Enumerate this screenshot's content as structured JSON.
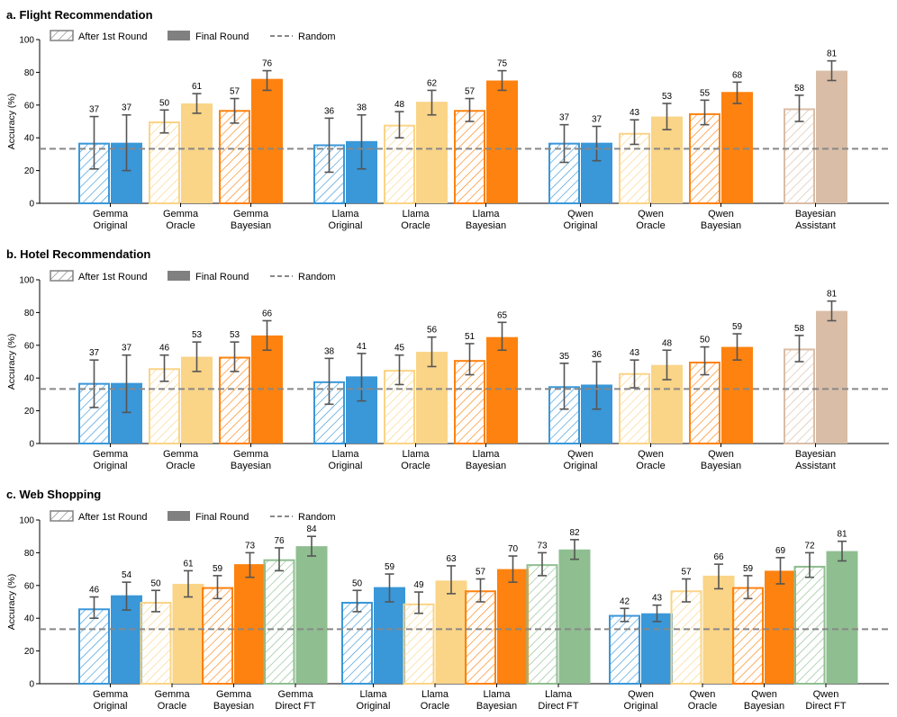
{
  "colors": {
    "blue": "#3a97d8",
    "light_orange": "#fad487",
    "orange": "#fd820f",
    "beige": "#d9bda6",
    "green": "#8fbe90",
    "random_line": "#888888",
    "legend_gray": "#808080",
    "error_bar": "#555555"
  },
  "legend": {
    "after_first": "After 1st Round",
    "final": "Final Round",
    "random": "Random"
  },
  "chart_data": [
    {
      "type": "bar",
      "title": "a. Flight Recommendation",
      "ylabel": "Accuracy (%)",
      "ylim": [
        0,
        100
      ],
      "yticks": [
        0,
        20,
        40,
        60,
        80,
        100
      ],
      "random_baseline": 33.3,
      "groups": [
        {
          "name": "Gemma",
          "categories": [
            {
              "label": [
                "Gemma",
                "Original"
              ],
              "color": "blue",
              "after": {
                "value": 37,
                "err": [
                  21,
                  53
                ]
              },
              "final": {
                "value": 37,
                "err": [
                  20,
                  54
                ]
              }
            },
            {
              "label": [
                "Gemma",
                "Oracle"
              ],
              "color": "light_orange",
              "after": {
                "value": 50,
                "err": [
                  43,
                  57
                ]
              },
              "final": {
                "value": 61,
                "err": [
                  55,
                  67
                ]
              }
            },
            {
              "label": [
                "Gemma",
                "Bayesian"
              ],
              "color": "orange",
              "after": {
                "value": 57,
                "err": [
                  49,
                  64
                ]
              },
              "final": {
                "value": 76,
                "err": [
                  69,
                  81
                ]
              }
            }
          ]
        },
        {
          "name": "Llama",
          "categories": [
            {
              "label": [
                "Llama",
                "Original"
              ],
              "color": "blue",
              "after": {
                "value": 36,
                "err": [
                  19,
                  52
                ]
              },
              "final": {
                "value": 38,
                "err": [
                  21,
                  54
                ]
              }
            },
            {
              "label": [
                "Llama",
                "Oracle"
              ],
              "color": "light_orange",
              "after": {
                "value": 48,
                "err": [
                  40,
                  56
                ]
              },
              "final": {
                "value": 62,
                "err": [
                  54,
                  69
                ]
              }
            },
            {
              "label": [
                "Llama",
                "Bayesian"
              ],
              "color": "orange",
              "after": {
                "value": 57,
                "err": [
                  50,
                  64
                ]
              },
              "final": {
                "value": 75,
                "err": [
                  69,
                  81
                ]
              }
            }
          ]
        },
        {
          "name": "Qwen",
          "categories": [
            {
              "label": [
                "Qwen",
                "Original"
              ],
              "color": "blue",
              "after": {
                "value": 37,
                "err": [
                  25,
                  48
                ]
              },
              "final": {
                "value": 37,
                "err": [
                  26,
                  47
                ]
              }
            },
            {
              "label": [
                "Qwen",
                "Oracle"
              ],
              "color": "light_orange",
              "after": {
                "value": 43,
                "err": [
                  36,
                  51
                ]
              },
              "final": {
                "value": 53,
                "err": [
                  45,
                  61
                ]
              }
            },
            {
              "label": [
                "Qwen",
                "Bayesian"
              ],
              "color": "orange",
              "after": {
                "value": 55,
                "err": [
                  48,
                  63
                ]
              },
              "final": {
                "value": 68,
                "err": [
                  61,
                  74
                ]
              }
            }
          ]
        },
        {
          "name": "Bayesian Assistant",
          "categories": [
            {
              "label": [
                "Bayesian",
                "Assistant"
              ],
              "color": "beige",
              "after": {
                "value": 58,
                "err": [
                  50,
                  66
                ]
              },
              "final": {
                "value": 81,
                "err": [
                  75,
                  87
                ]
              }
            }
          ]
        }
      ]
    },
    {
      "type": "bar",
      "title": "b. Hotel Recommendation",
      "ylabel": "Accuracy (%)",
      "ylim": [
        0,
        100
      ],
      "yticks": [
        0,
        20,
        40,
        60,
        80,
        100
      ],
      "random_baseline": 33.3,
      "groups": [
        {
          "name": "Gemma",
          "categories": [
            {
              "label": [
                "Gemma",
                "Original"
              ],
              "color": "blue",
              "after": {
                "value": 37,
                "err": [
                  22,
                  51
                ]
              },
              "final": {
                "value": 37,
                "err": [
                  19,
                  54
                ]
              }
            },
            {
              "label": [
                "Gemma",
                "Oracle"
              ],
              "color": "light_orange",
              "after": {
                "value": 46,
                "err": [
                  38,
                  54
                ]
              },
              "final": {
                "value": 53,
                "err": [
                  44,
                  62
                ]
              }
            },
            {
              "label": [
                "Gemma",
                "Bayesian"
              ],
              "color": "orange",
              "after": {
                "value": 53,
                "err": [
                  44,
                  62
                ]
              },
              "final": {
                "value": 66,
                "err": [
                  57,
                  75
                ]
              }
            }
          ]
        },
        {
          "name": "Llama",
          "categories": [
            {
              "label": [
                "Llama",
                "Original"
              ],
              "color": "blue",
              "after": {
                "value": 38,
                "err": [
                  24,
                  52
                ]
              },
              "final": {
                "value": 41,
                "err": [
                  26,
                  55
                ]
              }
            },
            {
              "label": [
                "Llama",
                "Oracle"
              ],
              "color": "light_orange",
              "after": {
                "value": 45,
                "err": [
                  36,
                  54
                ]
              },
              "final": {
                "value": 56,
                "err": [
                  47,
                  65
                ]
              }
            },
            {
              "label": [
                "Llama",
                "Bayesian"
              ],
              "color": "orange",
              "after": {
                "value": 51,
                "err": [
                  42,
                  61
                ]
              },
              "final": {
                "value": 65,
                "err": [
                  57,
                  74
                ]
              }
            }
          ]
        },
        {
          "name": "Qwen",
          "categories": [
            {
              "label": [
                "Qwen",
                "Original"
              ],
              "color": "blue",
              "after": {
                "value": 35,
                "err": [
                  21,
                  49
                ]
              },
              "final": {
                "value": 36,
                "err": [
                  21,
                  50
                ]
              }
            },
            {
              "label": [
                "Qwen",
                "Oracle"
              ],
              "color": "light_orange",
              "after": {
                "value": 43,
                "err": [
                  34,
                  51
                ]
              },
              "final": {
                "value": 48,
                "err": [
                  39,
                  57
                ]
              }
            },
            {
              "label": [
                "Qwen",
                "Bayesian"
              ],
              "color": "orange",
              "after": {
                "value": 50,
                "err": [
                  42,
                  59
                ]
              },
              "final": {
                "value": 59,
                "err": [
                  51,
                  67
                ]
              }
            }
          ]
        },
        {
          "name": "Bayesian Assistant",
          "categories": [
            {
              "label": [
                "Bayesian",
                "Assistant"
              ],
              "color": "beige",
              "after": {
                "value": 58,
                "err": [
                  50,
                  66
                ]
              },
              "final": {
                "value": 81,
                "err": [
                  75,
                  87
                ]
              }
            }
          ]
        }
      ]
    },
    {
      "type": "bar",
      "title": "c. Web Shopping",
      "ylabel": "Accuracy (%)",
      "ylim": [
        0,
        100
      ],
      "yticks": [
        0,
        20,
        40,
        60,
        80,
        100
      ],
      "random_baseline": 33.3,
      "groups": [
        {
          "name": "Gemma",
          "categories": [
            {
              "label": [
                "Gemma",
                "Original"
              ],
              "color": "blue",
              "after": {
                "value": 46,
                "err": [
                  40,
                  53
                ]
              },
              "final": {
                "value": 54,
                "err": [
                  45,
                  62
                ]
              }
            },
            {
              "label": [
                "Gemma",
                "Oracle"
              ],
              "color": "light_orange",
              "after": {
                "value": 50,
                "err": [
                  44,
                  57
                ]
              },
              "final": {
                "value": 61,
                "err": [
                  53,
                  69
                ]
              }
            },
            {
              "label": [
                "Gemma",
                "Bayesian"
              ],
              "color": "orange",
              "after": {
                "value": 59,
                "err": [
                  52,
                  66
                ]
              },
              "final": {
                "value": 73,
                "err": [
                  65,
                  80
                ]
              }
            },
            {
              "label": [
                "Gemma",
                "Direct FT"
              ],
              "color": "green",
              "after": {
                "value": 76,
                "err": [
                  69,
                  83
                ]
              },
              "final": {
                "value": 84,
                "err": [
                  78,
                  90
                ]
              }
            }
          ]
        },
        {
          "name": "Llama",
          "categories": [
            {
              "label": [
                "Llama",
                "Original"
              ],
              "color": "blue",
              "after": {
                "value": 50,
                "err": [
                  44,
                  57
                ]
              },
              "final": {
                "value": 59,
                "err": [
                  50,
                  67
                ]
              }
            },
            {
              "label": [
                "Llama",
                "Oracle"
              ],
              "color": "light_orange",
              "after": {
                "value": 49,
                "err": [
                  43,
                  56
                ]
              },
              "final": {
                "value": 63,
                "err": [
                  55,
                  72
                ]
              }
            },
            {
              "label": [
                "Llama",
                "Bayesian"
              ],
              "color": "orange",
              "after": {
                "value": 57,
                "err": [
                  50,
                  64
                ]
              },
              "final": {
                "value": 70,
                "err": [
                  62,
                  78
                ]
              }
            },
            {
              "label": [
                "Llama",
                "Direct FT"
              ],
              "color": "green",
              "after": {
                "value": 73,
                "err": [
                  66,
                  80
                ]
              },
              "final": {
                "value": 82,
                "err": [
                  76,
                  88
                ]
              }
            }
          ]
        },
        {
          "name": "Qwen",
          "categories": [
            {
              "label": [
                "Qwen",
                "Original"
              ],
              "color": "blue",
              "after": {
                "value": 42,
                "err": [
                  38,
                  46
                ]
              },
              "final": {
                "value": 43,
                "err": [
                  38,
                  48
                ]
              }
            },
            {
              "label": [
                "Qwen",
                "Oracle"
              ],
              "color": "light_orange",
              "after": {
                "value": 57,
                "err": [
                  50,
                  64
                ]
              },
              "final": {
                "value": 66,
                "err": [
                  58,
                  73
                ]
              }
            },
            {
              "label": [
                "Qwen",
                "Bayesian"
              ],
              "color": "orange",
              "after": {
                "value": 59,
                "err": [
                  52,
                  66
                ]
              },
              "final": {
                "value": 69,
                "err": [
                  61,
                  77
                ]
              }
            },
            {
              "label": [
                "Qwen",
                "Direct FT"
              ],
              "color": "green",
              "after": {
                "value": 72,
                "err": [
                  65,
                  80
                ]
              },
              "final": {
                "value": 81,
                "err": [
                  75,
                  87
                ]
              }
            }
          ]
        }
      ]
    }
  ]
}
